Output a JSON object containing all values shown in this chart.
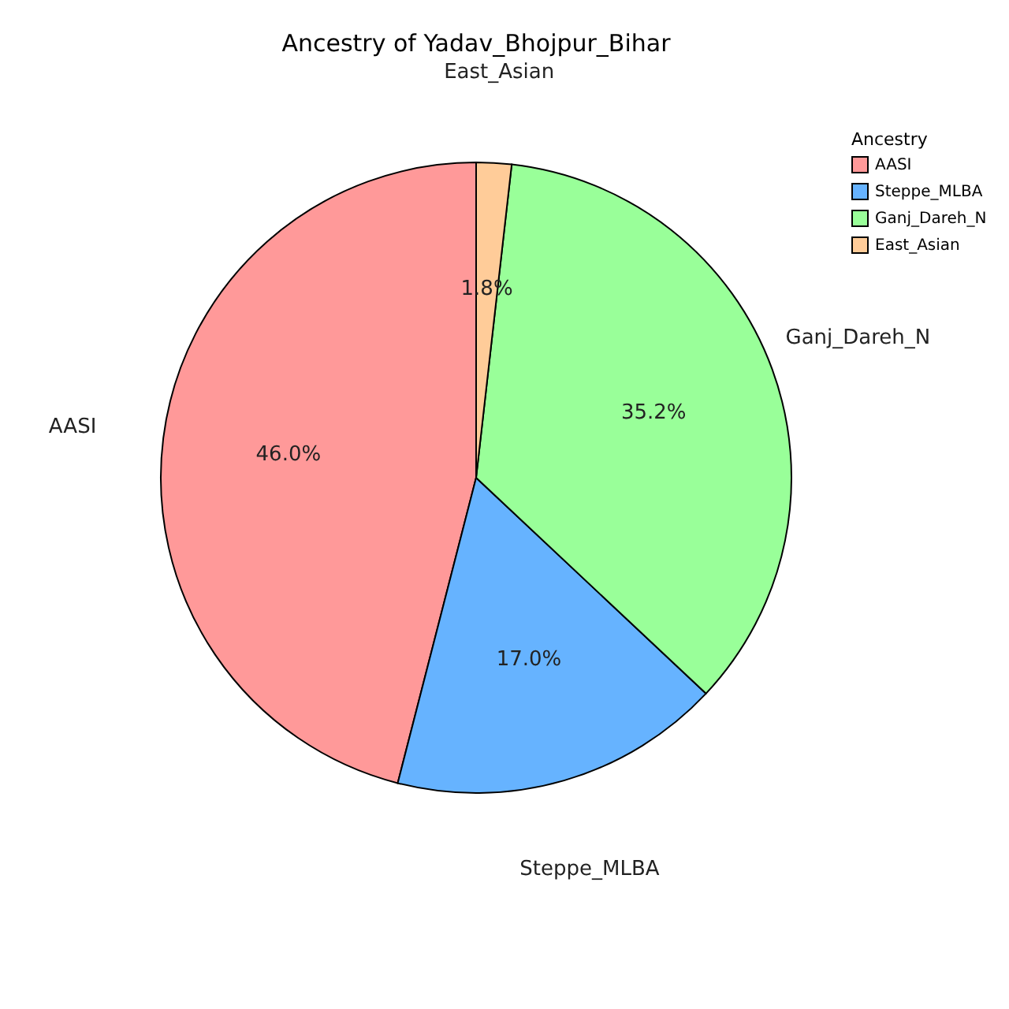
{
  "chart_data": {
    "type": "pie",
    "title": "Ancestry of Yadav_Bhojpur_Bihar",
    "legend_title": "Ancestry",
    "categories": [
      "AASI",
      "Steppe_MLBA",
      "Ganj_Dareh_N",
      "East_Asian"
    ],
    "values": [
      46.0,
      17.0,
      35.2,
      1.8
    ],
    "value_labels": [
      "46.0%",
      "17.0%",
      "35.2%",
      "1.8%"
    ],
    "colors": [
      "#ff9999",
      "#66b3ff",
      "#99ff99",
      "#ffcc99"
    ],
    "legend": "right"
  }
}
